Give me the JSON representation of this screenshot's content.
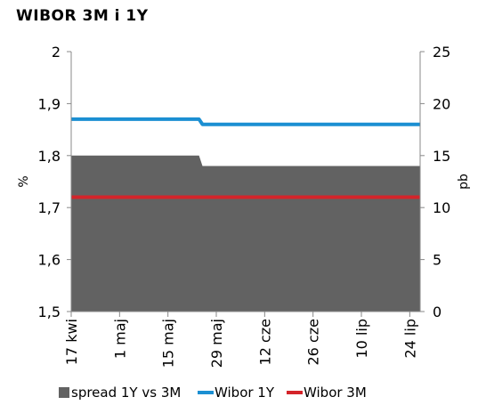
{
  "chart_data": {
    "type": "line",
    "title": "WIBOR 3M i 1Y",
    "ylabel_left": "%",
    "ylabel_right": "pb",
    "xlabel": "",
    "ylim_left": [
      1.5,
      2
    ],
    "ylim_right": [
      0,
      25
    ],
    "yticks_left": [
      "1,5",
      "1,6",
      "1,7",
      "1,8",
      "1,9",
      "2"
    ],
    "yticks_right": [
      "0",
      "5",
      "10",
      "15",
      "20",
      "25"
    ],
    "x_tick_labels": [
      "17 kwi",
      "1 maj",
      "15 maj",
      "29 maj",
      "12 cze",
      "26 cze",
      "10 lip",
      "24 lip"
    ],
    "x_range": [
      "2019-04-17",
      "2019-07-27"
    ],
    "grid": false,
    "legend_position": "bottom",
    "series": [
      {
        "name": "spread 1Y vs 3M",
        "type": "area",
        "axis": "right",
        "color": "#626262",
        "x": [
          "2019-04-17",
          "2019-05-24",
          "2019-05-25",
          "2019-07-27"
        ],
        "values": [
          15,
          15,
          14,
          14
        ]
      },
      {
        "name": "Wibor 1Y",
        "type": "line",
        "axis": "left",
        "color": "#1b8fd2",
        "x": [
          "2019-04-17",
          "2019-05-24",
          "2019-05-25",
          "2019-07-27"
        ],
        "values": [
          1.87,
          1.87,
          1.86,
          1.86
        ]
      },
      {
        "name": "Wibor 3M",
        "type": "line",
        "axis": "left",
        "color": "#d4242a",
        "x": [
          "2019-04-17",
          "2019-07-27"
        ],
        "values": [
          1.72,
          1.72
        ]
      }
    ]
  }
}
